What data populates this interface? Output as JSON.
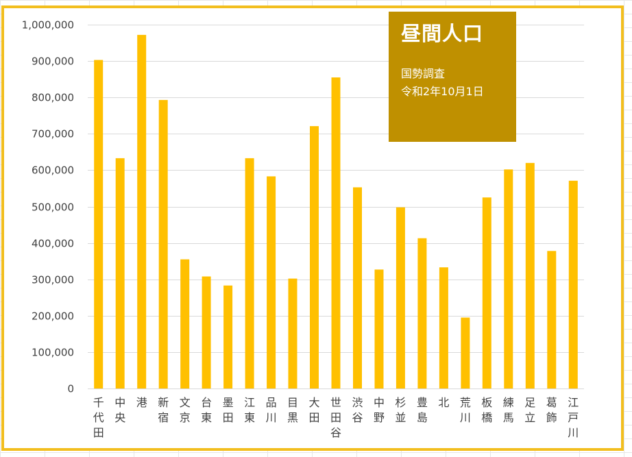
{
  "chart_data": {
    "type": "bar",
    "title": "昼間人口",
    "subtitle": [
      "国勢調査",
      "令和2年10月1日"
    ],
    "xlabel": "",
    "ylabel": "",
    "ylim": [
      0,
      1000000
    ],
    "yticks": [
      0,
      100000,
      200000,
      300000,
      400000,
      500000,
      600000,
      700000,
      800000,
      900000,
      1000000
    ],
    "ytick_labels": [
      "0",
      "100,000",
      "200,000",
      "300,000",
      "400,000",
      "500,000",
      "600,000",
      "700,000",
      "800,000",
      "900,000",
      "1,000,000"
    ],
    "grid": true,
    "categories": [
      "千代田",
      "中央",
      "港",
      "新宿",
      "文京",
      "台東",
      "墨田",
      "江東",
      "品川",
      "目黒",
      "大田",
      "世田谷",
      "渋谷",
      "中野",
      "杉並",
      "豊島",
      "北",
      "荒川",
      "板橋",
      "練馬",
      "足立",
      "葛飾",
      "江戸川"
    ],
    "values": [
      903000,
      633000,
      972000,
      793000,
      355000,
      308000,
      283000,
      633000,
      583000,
      302000,
      721000,
      855000,
      553000,
      327000,
      498000,
      413000,
      333000,
      195000,
      525000,
      602000,
      620000,
      378000,
      571000
    ],
    "bar_color": "#ffc000"
  }
}
